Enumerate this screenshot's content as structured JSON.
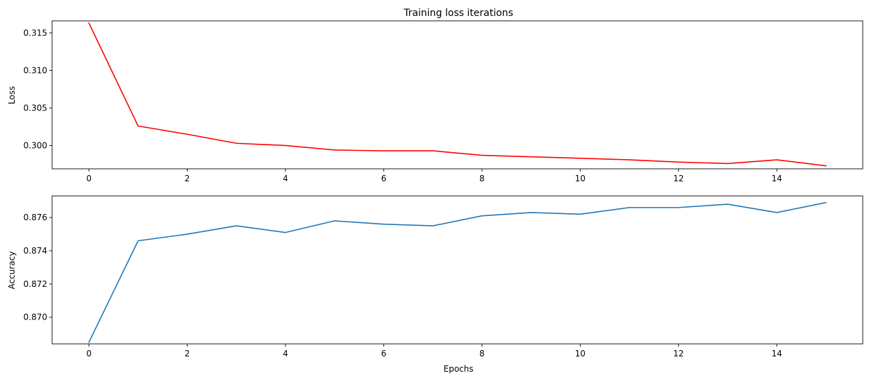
{
  "chart_data": [
    {
      "type": "line",
      "title": "Training loss iterations",
      "xlabel": "",
      "ylabel": "Loss",
      "xlim": [
        -0.75,
        15.75
      ],
      "ylim": [
        0.2969,
        0.3166
      ],
      "xticks": [
        0,
        2,
        4,
        6,
        8,
        10,
        12,
        14
      ],
      "xtick_labels": [
        "0",
        "2",
        "4",
        "6",
        "8",
        "10",
        "12",
        "14"
      ],
      "yticks": [
        0.3,
        0.305,
        0.31,
        0.315
      ],
      "ytick_labels": [
        "0.300",
        "0.305",
        "0.310",
        "0.315"
      ],
      "grid": false,
      "series": [
        {
          "color": "#ff0000",
          "x": [
            0,
            1,
            2,
            3,
            4,
            5,
            6,
            7,
            8,
            9,
            10,
            11,
            12,
            13,
            14,
            15
          ],
          "values": [
            0.3163,
            0.3026,
            0.3015,
            0.3003,
            0.3,
            0.2994,
            0.2993,
            0.2993,
            0.2987,
            0.2985,
            0.2983,
            0.2981,
            0.2978,
            0.2976,
            0.2981,
            0.2973
          ]
        }
      ]
    },
    {
      "type": "line",
      "title": "",
      "xlabel": "Epochs",
      "ylabel": "Accuracy",
      "xlim": [
        -0.75,
        15.75
      ],
      "ylim": [
        0.8684,
        0.8773
      ],
      "xticks": [
        0,
        2,
        4,
        6,
        8,
        10,
        12,
        14
      ],
      "xtick_labels": [
        "0",
        "2",
        "4",
        "6",
        "8",
        "10",
        "12",
        "14"
      ],
      "yticks": [
        0.87,
        0.872,
        0.874,
        0.876
      ],
      "ytick_labels": [
        "0.870",
        "0.872",
        "0.874",
        "0.876"
      ],
      "grid": false,
      "series": [
        {
          "color": "#1f77b4",
          "x": [
            0,
            1,
            2,
            3,
            4,
            5,
            6,
            7,
            8,
            9,
            10,
            11,
            12,
            13,
            14,
            15
          ],
          "values": [
            0.8685,
            0.8746,
            0.875,
            0.8755,
            0.8751,
            0.8758,
            0.8756,
            0.8755,
            0.8761,
            0.8763,
            0.8762,
            0.8766,
            0.8766,
            0.8768,
            0.8763,
            0.8769
          ]
        }
      ]
    }
  ]
}
